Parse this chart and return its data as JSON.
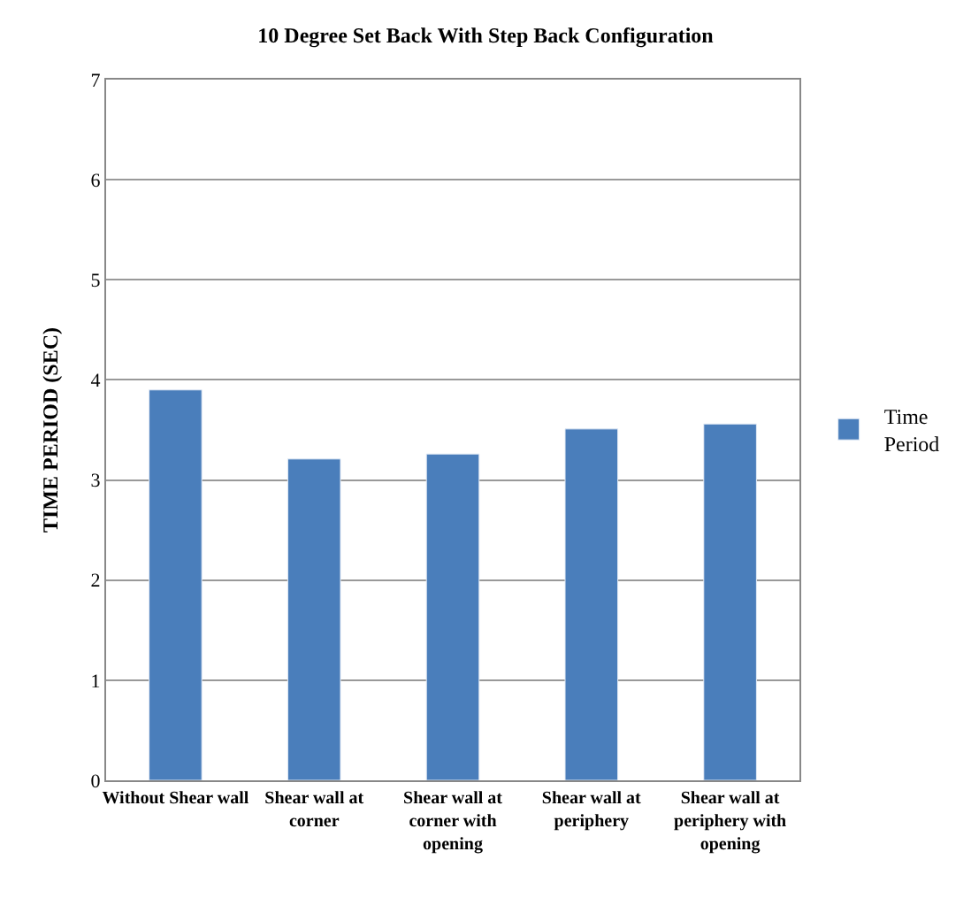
{
  "chart_data": {
    "type": "bar",
    "title": "10 Degree Set Back With Step Back Configuration",
    "ylabel": "TIME PERIOD (SEC)",
    "categories": [
      "Without Shear wall",
      "Shear wall at corner",
      "Shear wall at corner with opening",
      "Shear wall at periphery",
      "Shear wall at periphery with opening"
    ],
    "series": [
      {
        "name": "Time Period",
        "color": "#4a7ebb",
        "values": [
          3.9,
          3.21,
          3.26,
          3.51,
          3.56
        ]
      }
    ],
    "ylim": [
      0,
      7
    ],
    "yticks": [
      0,
      1,
      2,
      3,
      4,
      5,
      6,
      7
    ],
    "grid": "y",
    "legend": "right"
  }
}
